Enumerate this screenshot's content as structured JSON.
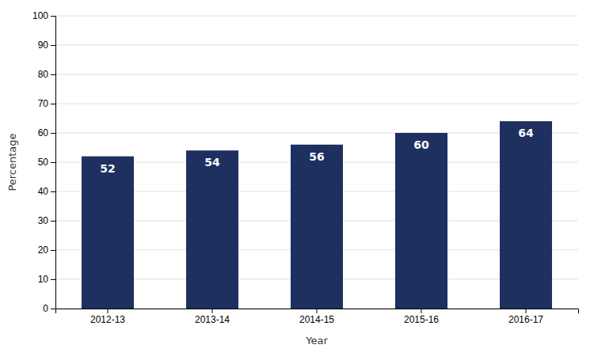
{
  "chart_data": {
    "type": "bar",
    "categories": [
      "2012-13",
      "2013-14",
      "2014-15",
      "2015-16",
      "2016-17"
    ],
    "values": [
      52,
      54,
      56,
      60,
      64
    ],
    "color": "#1e3060",
    "xlabel": "Year",
    "ylabel": "Percentage",
    "ylim": [
      0,
      100
    ],
    "yticks": [
      0,
      10,
      20,
      30,
      40,
      50,
      60,
      70,
      80,
      90,
      100
    ],
    "grid": true,
    "data_labels": true
  }
}
